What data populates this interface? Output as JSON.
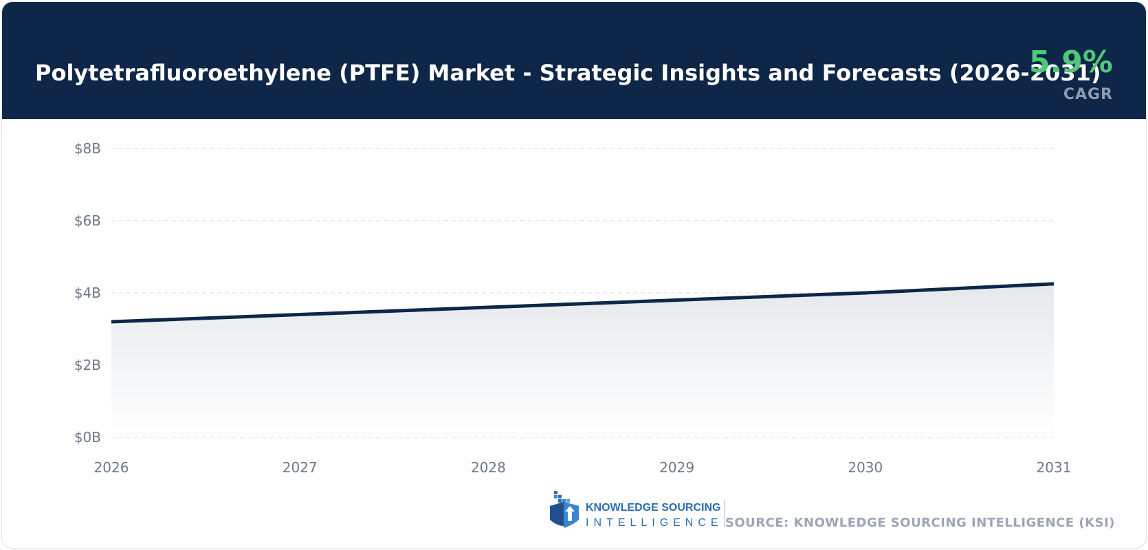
{
  "header": {
    "title": "Polytetrafluoroethylene (PTFE) Market - Strategic Insights and Forecasts (2026-2031)",
    "cagr_value": "5.9%",
    "cagr_label": "CAGR"
  },
  "colors": {
    "header_bg": "#0e2647",
    "cagr_green": "#4ec97a",
    "line": "#0e2647"
  },
  "chart_data": {
    "type": "area",
    "x": [
      "2026",
      "2027",
      "2028",
      "2029",
      "2030",
      "2031"
    ],
    "values": [
      3.2,
      3.4,
      3.6,
      3.8,
      4.0,
      4.25
    ],
    "ylim": [
      0,
      8
    ],
    "y_ticks": [
      "$0B",
      "$2B",
      "$4B",
      "$6B",
      "$8B"
    ],
    "y_tick_values": [
      0,
      2,
      4,
      6,
      8
    ],
    "grid": true
  },
  "footer": {
    "logo_line1": "KNOWLEDGE SOURCING",
    "logo_line2": "INTELLIGENCE",
    "source": "SOURCE: KNOWLEDGE SOURCING INTELLIGENCE (KSI)"
  }
}
